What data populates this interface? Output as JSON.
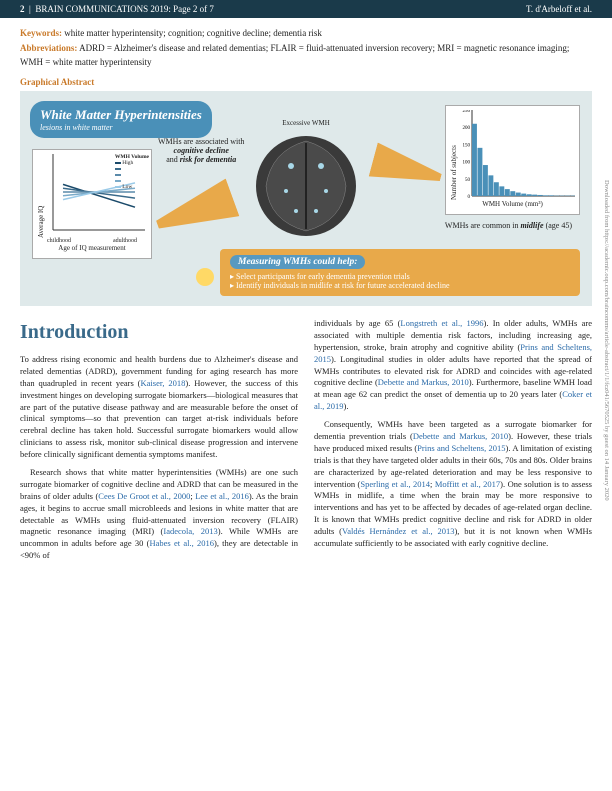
{
  "header": {
    "left_page": "2",
    "left_journal": "BRAIN COMMUNICATIONS 2019: Page 2 of 7",
    "right_author": "T. d'Arbeloff et al."
  },
  "keywords": {
    "label": "Keywords:",
    "text": "white matter hyperintensity; cognition; cognitive decline; dementia risk"
  },
  "abbreviations": {
    "label": "Abbreviations:",
    "text": "ADRD = Alzheimer's disease and related dementias; FLAIR = fluid-attenuated inversion recovery; MRI = magnetic resonance imaging; WMH = white matter hyperintensity"
  },
  "graphical_abstract": {
    "label": "Graphical Abstract",
    "title": "White Matter Hyperintensities",
    "subtitle": "lesions in white matter",
    "association_text": "WMHs are associated with",
    "association_bold1": "cognitive decline",
    "association_mid": "and",
    "association_bold2": "risk for dementia",
    "excessive_label": "Excessive WMH",
    "common_text": "WMHs are common in",
    "common_bold": "midlife",
    "common_age": "(age 45)",
    "line_chart": {
      "type": "line",
      "ylabel": "Average IQ",
      "xlabel_left": "childhood",
      "xlabel_right": "adulthood",
      "xaxis_caption": "Age of IQ measurement",
      "legend_title": "WMH Volume",
      "legend_items": [
        "High",
        "",
        "",
        "",
        "Low"
      ],
      "series": [
        {
          "color": "#1a4a6a",
          "y1": 60,
          "y2": 30
        },
        {
          "color": "#3a6a8a",
          "y1": 55,
          "y2": 42
        },
        {
          "color": "#5a8aaa",
          "y1": 50,
          "y2": 50
        },
        {
          "color": "#7aaac8",
          "y1": 45,
          "y2": 55
        },
        {
          "color": "#9acae8",
          "y1": 40,
          "y2": 62
        }
      ],
      "background_color": "#ffffff"
    },
    "bar_chart": {
      "type": "histogram",
      "ylabel": "Number of subjects",
      "xlabel": "WMH Volume (mm³)",
      "bar_color": "#4a90b8",
      "values": [
        210,
        140,
        90,
        60,
        40,
        28,
        20,
        14,
        10,
        7,
        5,
        4,
        3,
        2,
        2,
        1,
        1,
        1,
        1
      ],
      "ylim": [
        0,
        250
      ],
      "background_color": "#ffffff"
    },
    "measuring": {
      "title": "Measuring WMHs could help:",
      "items": [
        "Select participants for early dementia prevention trials",
        "Identify individuals in midlife at risk for future accelerated decline"
      ]
    }
  },
  "introduction": {
    "heading": "Introduction",
    "para1_a": "To address rising economic and health burdens due to Alzheimer's disease and related dementias (ADRD), government funding for aging research has more than quadrupled in recent years (",
    "cite1": "Kaiser, 2018",
    "para1_b": "). However, the success of this investment hinges on developing surrogate biomarkers—biological measures that are part of the putative disease pathway and are measurable before the onset of clinical symptoms—so that prevention can target at-risk individuals before cerebral decline has taken hold. Successful surrogate biomarkers would allow clinicians to assess risk, monitor sub-clinical disease progression and intervene before clinically significant dementia symptoms manifest.",
    "para2_a": "Research shows that white matter hyperintensities (WMHs) are one such surrogate biomarker of cognitive decline and ADRD that can be measured in the brains of older adults (",
    "cite2a": "Cees De Groot et al., 2000",
    "para2_mid1": "; ",
    "cite2b": "Lee et al., 2016",
    "para2_b": "). As the brain ages, it begins to accrue small microbleeds and lesions in white matter that are detectable as WMHs using fluid-attenuated inversion recovery (FLAIR) magnetic resonance imaging (MRI) (",
    "cite3": "Iadecola, 2013",
    "para2_c": "). While WMHs are uncommon in adults before age 30 (",
    "cite4": "Habes et al., 2016",
    "para2_d": "), they are detectable in <90% of",
    "para3_a": "individuals by age 65 (",
    "cite5": "Longstreth et al., 1996",
    "para3_b": "). In older adults, WMHs are associated with multiple dementia risk factors, including increasing age, hypertension, stroke, brain atrophy and cognitive ability (",
    "cite6": "Prins and Scheltens, 2015",
    "para3_c": "). Longitudinal studies in older adults have reported that the spread of WMHs contributes to elevated risk for ADRD and coincides with age-related cognitive decline (",
    "cite7": "Debette and Markus, 2010",
    "para3_d": "). Furthermore, baseline WMH load at mean age 62 can predict the onset of dementia up to 20 years later (",
    "cite8": "Coker et al., 2019",
    "para3_e": ").",
    "para4_a": "Consequently, WMHs have been targeted as a surrogate biomarker for dementia prevention trials (",
    "cite9": "Debette and Markus, 2010",
    "para4_b": "). However, these trials have produced mixed results (",
    "cite10": "Prins and Scheltens, 2015",
    "para4_c": "). A limitation of existing trials is that they have targeted older adults in their 60s, 70s and 80s. Older brains are characterized by age-related deterioration and may be less responsive to intervention (",
    "cite11": "Sperling et al., 2014",
    "para4_mid": "; ",
    "cite12": "Moffitt et al., 2017",
    "para4_d": "). One solution is to assess WMHs in midlife, a time when the brain may be more responsive to interventions and has yet to be affected by decades of age-related organ decline. It is known that WMHs predict cognitive decline and risk for ADRD in older adults (",
    "cite13": "Valdés Hernández et al., 2013",
    "para4_e": "), but it is not known when WMHs accumulate sufficiently to be associated with early cognitive decline."
  },
  "side_text": "Downloaded from https://academic.oup.com/braincomms/article-abstract/1/1/fcz041/5670525 by guest on 14 January 2020"
}
